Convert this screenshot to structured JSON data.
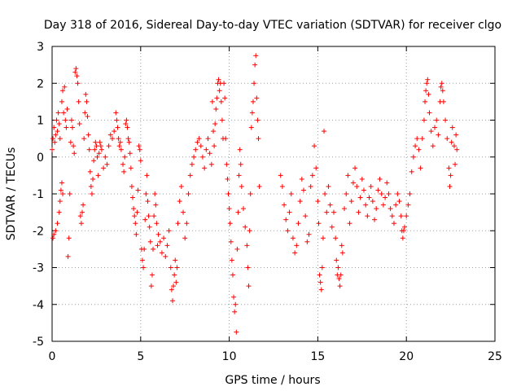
{
  "chart_data": {
    "type": "scatter",
    "title": "Day 318 of 2016, Sidereal Day-to-day VTEC variation (SDTVAR) for receiver clgo",
    "xlabel": "GPS time / hours",
    "ylabel": "SDTVAR / TECUs",
    "xlim": [
      0,
      25
    ],
    "ylim": [
      -5,
      3
    ],
    "xticks": [
      "0",
      "5",
      "10",
      "15",
      "20",
      "25"
    ],
    "yticks": [
      "-5",
      "-4",
      "-3",
      "-2",
      "-1",
      "0",
      "1",
      "2",
      "3"
    ],
    "grid": true,
    "marker": "+",
    "color": "#ff0000",
    "series": [
      {
        "name": "SDTVAR",
        "points": [
          [
            0.0,
            0.2
          ],
          [
            0.05,
            0.5
          ],
          [
            0.1,
            0.8
          ],
          [
            0.15,
            0.4
          ],
          [
            0.2,
            0.6
          ],
          [
            0.25,
            1.0
          ],
          [
            0.3,
            0.7
          ],
          [
            0.35,
            1.2
          ],
          [
            0.4,
            0.9
          ],
          [
            0.45,
            0.5
          ],
          [
            0.05,
            -2.2
          ],
          [
            0.1,
            -2.1
          ],
          [
            0.2,
            -2.0
          ],
          [
            0.3,
            -1.8
          ],
          [
            0.4,
            -1.5
          ],
          [
            0.45,
            -1.2
          ],
          [
            0.5,
            -0.9
          ],
          [
            0.55,
            -0.7
          ],
          [
            0.6,
            -1.0
          ],
          [
            0.55,
            1.5
          ],
          [
            0.6,
            1.8
          ],
          [
            0.65,
            1.2
          ],
          [
            0.7,
            1.9
          ],
          [
            0.75,
            1.0
          ],
          [
            0.8,
            0.8
          ],
          [
            0.85,
            1.3
          ],
          [
            0.9,
            -2.7
          ],
          [
            0.95,
            -2.2
          ],
          [
            1.0,
            -1.0
          ],
          [
            1.05,
            0.4
          ],
          [
            1.1,
            1.0
          ],
          [
            1.15,
            0.8
          ],
          [
            1.2,
            0.3
          ],
          [
            1.25,
            0.1
          ],
          [
            1.3,
            2.3
          ],
          [
            1.35,
            2.4
          ],
          [
            1.4,
            2.2
          ],
          [
            1.45,
            2.0
          ],
          [
            1.5,
            1.5
          ],
          [
            1.55,
            0.9
          ],
          [
            1.6,
            -1.6
          ],
          [
            1.65,
            -1.8
          ],
          [
            1.7,
            -1.5
          ],
          [
            1.75,
            -1.3
          ],
          [
            1.8,
            0.5
          ],
          [
            1.85,
            1.2
          ],
          [
            1.9,
            1.7
          ],
          [
            1.95,
            1.5
          ],
          [
            2.0,
            1.1
          ],
          [
            2.05,
            0.6
          ],
          [
            2.1,
            0.2
          ],
          [
            2.15,
            -0.4
          ],
          [
            2.2,
            -0.8
          ],
          [
            2.25,
            -1.0
          ],
          [
            2.3,
            -0.6
          ],
          [
            2.35,
            -0.1
          ],
          [
            2.4,
            0.2
          ],
          [
            2.45,
            0.4
          ],
          [
            2.5,
            0.3
          ],
          [
            2.55,
            0.0
          ],
          [
            2.6,
            -0.5
          ],
          [
            2.65,
            0.1
          ],
          [
            2.7,
            0.4
          ],
          [
            2.75,
            0.3
          ],
          [
            2.8,
            0.2
          ],
          [
            2.9,
            -0.3
          ],
          [
            3.0,
            0.0
          ],
          [
            3.1,
            -0.2
          ],
          [
            3.2,
            0.3
          ],
          [
            3.3,
            0.6
          ],
          [
            3.4,
            0.5
          ],
          [
            3.5,
            0.7
          ],
          [
            3.6,
            1.2
          ],
          [
            3.65,
            1.0
          ],
          [
            3.7,
            0.8
          ],
          [
            3.75,
            0.5
          ],
          [
            3.8,
            0.3
          ],
          [
            3.85,
            0.4
          ],
          [
            3.9,
            0.2
          ],
          [
            4.0,
            -0.2
          ],
          [
            4.05,
            -0.4
          ],
          [
            4.1,
            0.0
          ],
          [
            4.15,
            0.9
          ],
          [
            4.2,
            1.0
          ],
          [
            4.25,
            0.8
          ],
          [
            4.3,
            0.5
          ],
          [
            4.35,
            0.4
          ],
          [
            4.4,
            0.1
          ],
          [
            4.45,
            -0.3
          ],
          [
            4.5,
            -0.8
          ],
          [
            4.55,
            -1.1
          ],
          [
            4.6,
            -1.4
          ],
          [
            4.65,
            -1.6
          ],
          [
            4.7,
            -1.8
          ],
          [
            4.75,
            -2.1
          ],
          [
            4.8,
            -1.5
          ],
          [
            4.85,
            -0.9
          ],
          [
            4.9,
            0.3
          ],
          [
            4.95,
            0.2
          ],
          [
            5.0,
            -0.1
          ],
          [
            5.05,
            -2.5
          ],
          [
            5.1,
            -2.8
          ],
          [
            5.15,
            -3.0
          ],
          [
            5.2,
            -2.5
          ],
          [
            5.25,
            -1.7
          ],
          [
            5.3,
            -1.0
          ],
          [
            5.35,
            -0.5
          ],
          [
            5.4,
            -1.2
          ],
          [
            5.45,
            -1.6
          ],
          [
            5.5,
            -1.9
          ],
          [
            5.55,
            -2.3
          ],
          [
            5.6,
            -3.5
          ],
          [
            5.65,
            -3.2
          ],
          [
            5.7,
            -2.5
          ],
          [
            5.75,
            -1.6
          ],
          [
            5.8,
            -1.0
          ],
          [
            5.85,
            -1.3
          ],
          [
            5.9,
            -1.8
          ],
          [
            5.95,
            -2.4
          ],
          [
            6.0,
            -2.1
          ],
          [
            6.1,
            -2.3
          ],
          [
            6.2,
            -2.6
          ],
          [
            6.3,
            -2.2
          ],
          [
            6.4,
            -2.7
          ],
          [
            6.5,
            -2.4
          ],
          [
            6.6,
            -2.0
          ],
          [
            6.7,
            -3.0
          ],
          [
            6.75,
            -3.6
          ],
          [
            6.8,
            -3.9
          ],
          [
            6.85,
            -3.5
          ],
          [
            6.9,
            -3.2
          ],
          [
            6.95,
            -2.8
          ],
          [
            7.0,
            -3.4
          ],
          [
            7.05,
            -3.0
          ],
          [
            7.1,
            -1.8
          ],
          [
            7.2,
            -1.2
          ],
          [
            7.3,
            -0.8
          ],
          [
            7.4,
            -1.5
          ],
          [
            7.5,
            -2.2
          ],
          [
            7.6,
            -1.8
          ],
          [
            7.7,
            -1.0
          ],
          [
            7.8,
            -0.5
          ],
          [
            7.9,
            -0.2
          ],
          [
            8.0,
            0.0
          ],
          [
            8.1,
            0.2
          ],
          [
            8.2,
            0.4
          ],
          [
            8.3,
            0.5
          ],
          [
            8.4,
            0.3
          ],
          [
            8.5,
            0.0
          ],
          [
            8.6,
            -0.3
          ],
          [
            8.7,
            0.2
          ],
          [
            8.8,
            0.5
          ],
          [
            8.9,
            0.1
          ],
          [
            9.0,
            -0.2
          ],
          [
            9.05,
            1.5
          ],
          [
            9.1,
            0.7
          ],
          [
            9.15,
            0.3
          ],
          [
            9.2,
            0.9
          ],
          [
            9.25,
            1.3
          ],
          [
            9.3,
            1.6
          ],
          [
            9.35,
            2.0
          ],
          [
            9.4,
            2.1
          ],
          [
            9.45,
            1.8
          ],
          [
            9.5,
            2.0
          ],
          [
            9.55,
            1.5
          ],
          [
            9.6,
            1.0
          ],
          [
            9.65,
            0.5
          ],
          [
            9.7,
            2.0
          ],
          [
            9.75,
            1.6
          ],
          [
            9.8,
            0.5
          ],
          [
            9.85,
            -0.2
          ],
          [
            9.9,
            -0.6
          ],
          [
            9.95,
            -1.0
          ],
          [
            10.0,
            -1.4
          ],
          [
            10.05,
            -1.8
          ],
          [
            10.1,
            -2.3
          ],
          [
            10.15,
            -2.8
          ],
          [
            10.2,
            -3.2
          ],
          [
            10.25,
            -3.8
          ],
          [
            10.3,
            -4.2
          ],
          [
            10.35,
            -4.0
          ],
          [
            10.4,
            -4.75
          ],
          [
            10.45,
            -2.5
          ],
          [
            10.5,
            -1.5
          ],
          [
            10.55,
            -0.5
          ],
          [
            10.6,
            0.2
          ],
          [
            10.65,
            -0.2
          ],
          [
            10.7,
            -0.8
          ],
          [
            10.8,
            -1.4
          ],
          [
            10.9,
            -1.9
          ],
          [
            11.0,
            -2.4
          ],
          [
            11.05,
            -3.0
          ],
          [
            11.1,
            -3.5
          ],
          [
            11.15,
            -2.0
          ],
          [
            11.2,
            -1.0
          ],
          [
            11.25,
            0.8
          ],
          [
            11.3,
            1.2
          ],
          [
            11.35,
            1.5
          ],
          [
            11.4,
            2.0
          ],
          [
            11.45,
            2.5
          ],
          [
            11.5,
            2.75
          ],
          [
            11.55,
            1.6
          ],
          [
            11.6,
            1.0
          ],
          [
            11.65,
            0.5
          ],
          [
            11.7,
            -0.8
          ],
          [
            12.9,
            -0.5
          ],
          [
            13.0,
            -0.8
          ],
          [
            13.1,
            -1.3
          ],
          [
            13.2,
            -1.7
          ],
          [
            13.3,
            -2.0
          ],
          [
            13.4,
            -1.5
          ],
          [
            13.5,
            -1.0
          ],
          [
            13.6,
            -2.2
          ],
          [
            13.7,
            -2.6
          ],
          [
            13.8,
            -2.4
          ],
          [
            13.9,
            -1.8
          ],
          [
            14.0,
            -1.2
          ],
          [
            14.1,
            -0.6
          ],
          [
            14.2,
            -0.9
          ],
          [
            14.3,
            -1.6
          ],
          [
            14.4,
            -2.3
          ],
          [
            14.5,
            -2.1
          ],
          [
            14.6,
            -0.8
          ],
          [
            14.7,
            -0.5
          ],
          [
            14.8,
            0.3
          ],
          [
            14.9,
            -0.3
          ],
          [
            15.0,
            -1.2
          ],
          [
            15.05,
            -1.8
          ],
          [
            15.1,
            -3.2
          ],
          [
            15.15,
            -3.4
          ],
          [
            15.2,
            -3.6
          ],
          [
            15.25,
            -3.0
          ],
          [
            15.3,
            -2.2
          ],
          [
            15.35,
            0.7
          ],
          [
            15.4,
            -1.0
          ],
          [
            15.5,
            -1.5
          ],
          [
            15.6,
            -0.8
          ],
          [
            15.7,
            -1.3
          ],
          [
            15.8,
            -1.9
          ],
          [
            15.9,
            -1.5
          ],
          [
            16.0,
            -2.2
          ],
          [
            16.05,
            -2.8
          ],
          [
            16.1,
            -3.2
          ],
          [
            16.15,
            -3.0
          ],
          [
            16.2,
            -3.3
          ],
          [
            16.25,
            -3.5
          ],
          [
            16.3,
            -3.2
          ],
          [
            16.35,
            -2.4
          ],
          [
            16.4,
            -2.6
          ],
          [
            16.5,
            -1.4
          ],
          [
            16.6,
            -1.0
          ],
          [
            16.7,
            -0.5
          ],
          [
            16.8,
            -1.8
          ],
          [
            16.9,
            -1.2
          ],
          [
            17.0,
            -0.7
          ],
          [
            17.1,
            -0.3
          ],
          [
            17.2,
            -0.8
          ],
          [
            17.3,
            -1.5
          ],
          [
            17.4,
            -1.1
          ],
          [
            17.5,
            -0.6
          ],
          [
            17.6,
            -0.9
          ],
          [
            17.7,
            -1.3
          ],
          [
            17.8,
            -1.6
          ],
          [
            17.9,
            -1.1
          ],
          [
            18.0,
            -0.8
          ],
          [
            18.1,
            -1.2
          ],
          [
            18.2,
            -1.7
          ],
          [
            18.3,
            -1.4
          ],
          [
            18.4,
            -0.9
          ],
          [
            18.5,
            -0.6
          ],
          [
            18.6,
            -1.0
          ],
          [
            18.7,
            -1.3
          ],
          [
            18.8,
            -1.1
          ],
          [
            18.9,
            -0.7
          ],
          [
            19.0,
            -1.0
          ],
          [
            19.1,
            -1.4
          ],
          [
            19.2,
            -1.6
          ],
          [
            19.3,
            -1.8
          ],
          [
            19.4,
            -1.3
          ],
          [
            19.5,
            -1.0
          ],
          [
            19.6,
            -1.2
          ],
          [
            19.7,
            -1.6
          ],
          [
            19.75,
            -2.0
          ],
          [
            19.8,
            -2.2
          ],
          [
            19.85,
            -2.0
          ],
          [
            19.9,
            -1.9
          ],
          [
            20.0,
            -1.6
          ],
          [
            20.1,
            -1.3
          ],
          [
            20.2,
            -1.0
          ],
          [
            20.3,
            -0.4
          ],
          [
            20.4,
            0.0
          ],
          [
            20.5,
            0.3
          ],
          [
            20.6,
            0.5
          ],
          [
            20.7,
            0.2
          ],
          [
            20.8,
            -0.3
          ],
          [
            20.9,
            0.5
          ],
          [
            21.0,
            1.0
          ],
          [
            21.05,
            1.5
          ],
          [
            21.1,
            1.8
          ],
          [
            21.15,
            2.0
          ],
          [
            21.2,
            2.1
          ],
          [
            21.25,
            1.7
          ],
          [
            21.3,
            1.2
          ],
          [
            21.4,
            0.7
          ],
          [
            21.5,
            0.3
          ],
          [
            21.6,
            0.8
          ],
          [
            21.7,
            1.0
          ],
          [
            21.8,
            0.6
          ],
          [
            21.9,
            1.5
          ],
          [
            21.95,
            1.9
          ],
          [
            22.0,
            2.0
          ],
          [
            22.05,
            1.8
          ],
          [
            22.1,
            1.5
          ],
          [
            22.2,
            1.0
          ],
          [
            22.3,
            0.5
          ],
          [
            22.4,
            -0.3
          ],
          [
            22.45,
            -0.8
          ],
          [
            22.5,
            -0.5
          ],
          [
            22.55,
            0.4
          ],
          [
            22.6,
            0.8
          ],
          [
            22.7,
            0.3
          ],
          [
            22.75,
            -0.2
          ],
          [
            22.8,
            0.6
          ],
          [
            22.85,
            0.2
          ]
        ]
      }
    ]
  }
}
